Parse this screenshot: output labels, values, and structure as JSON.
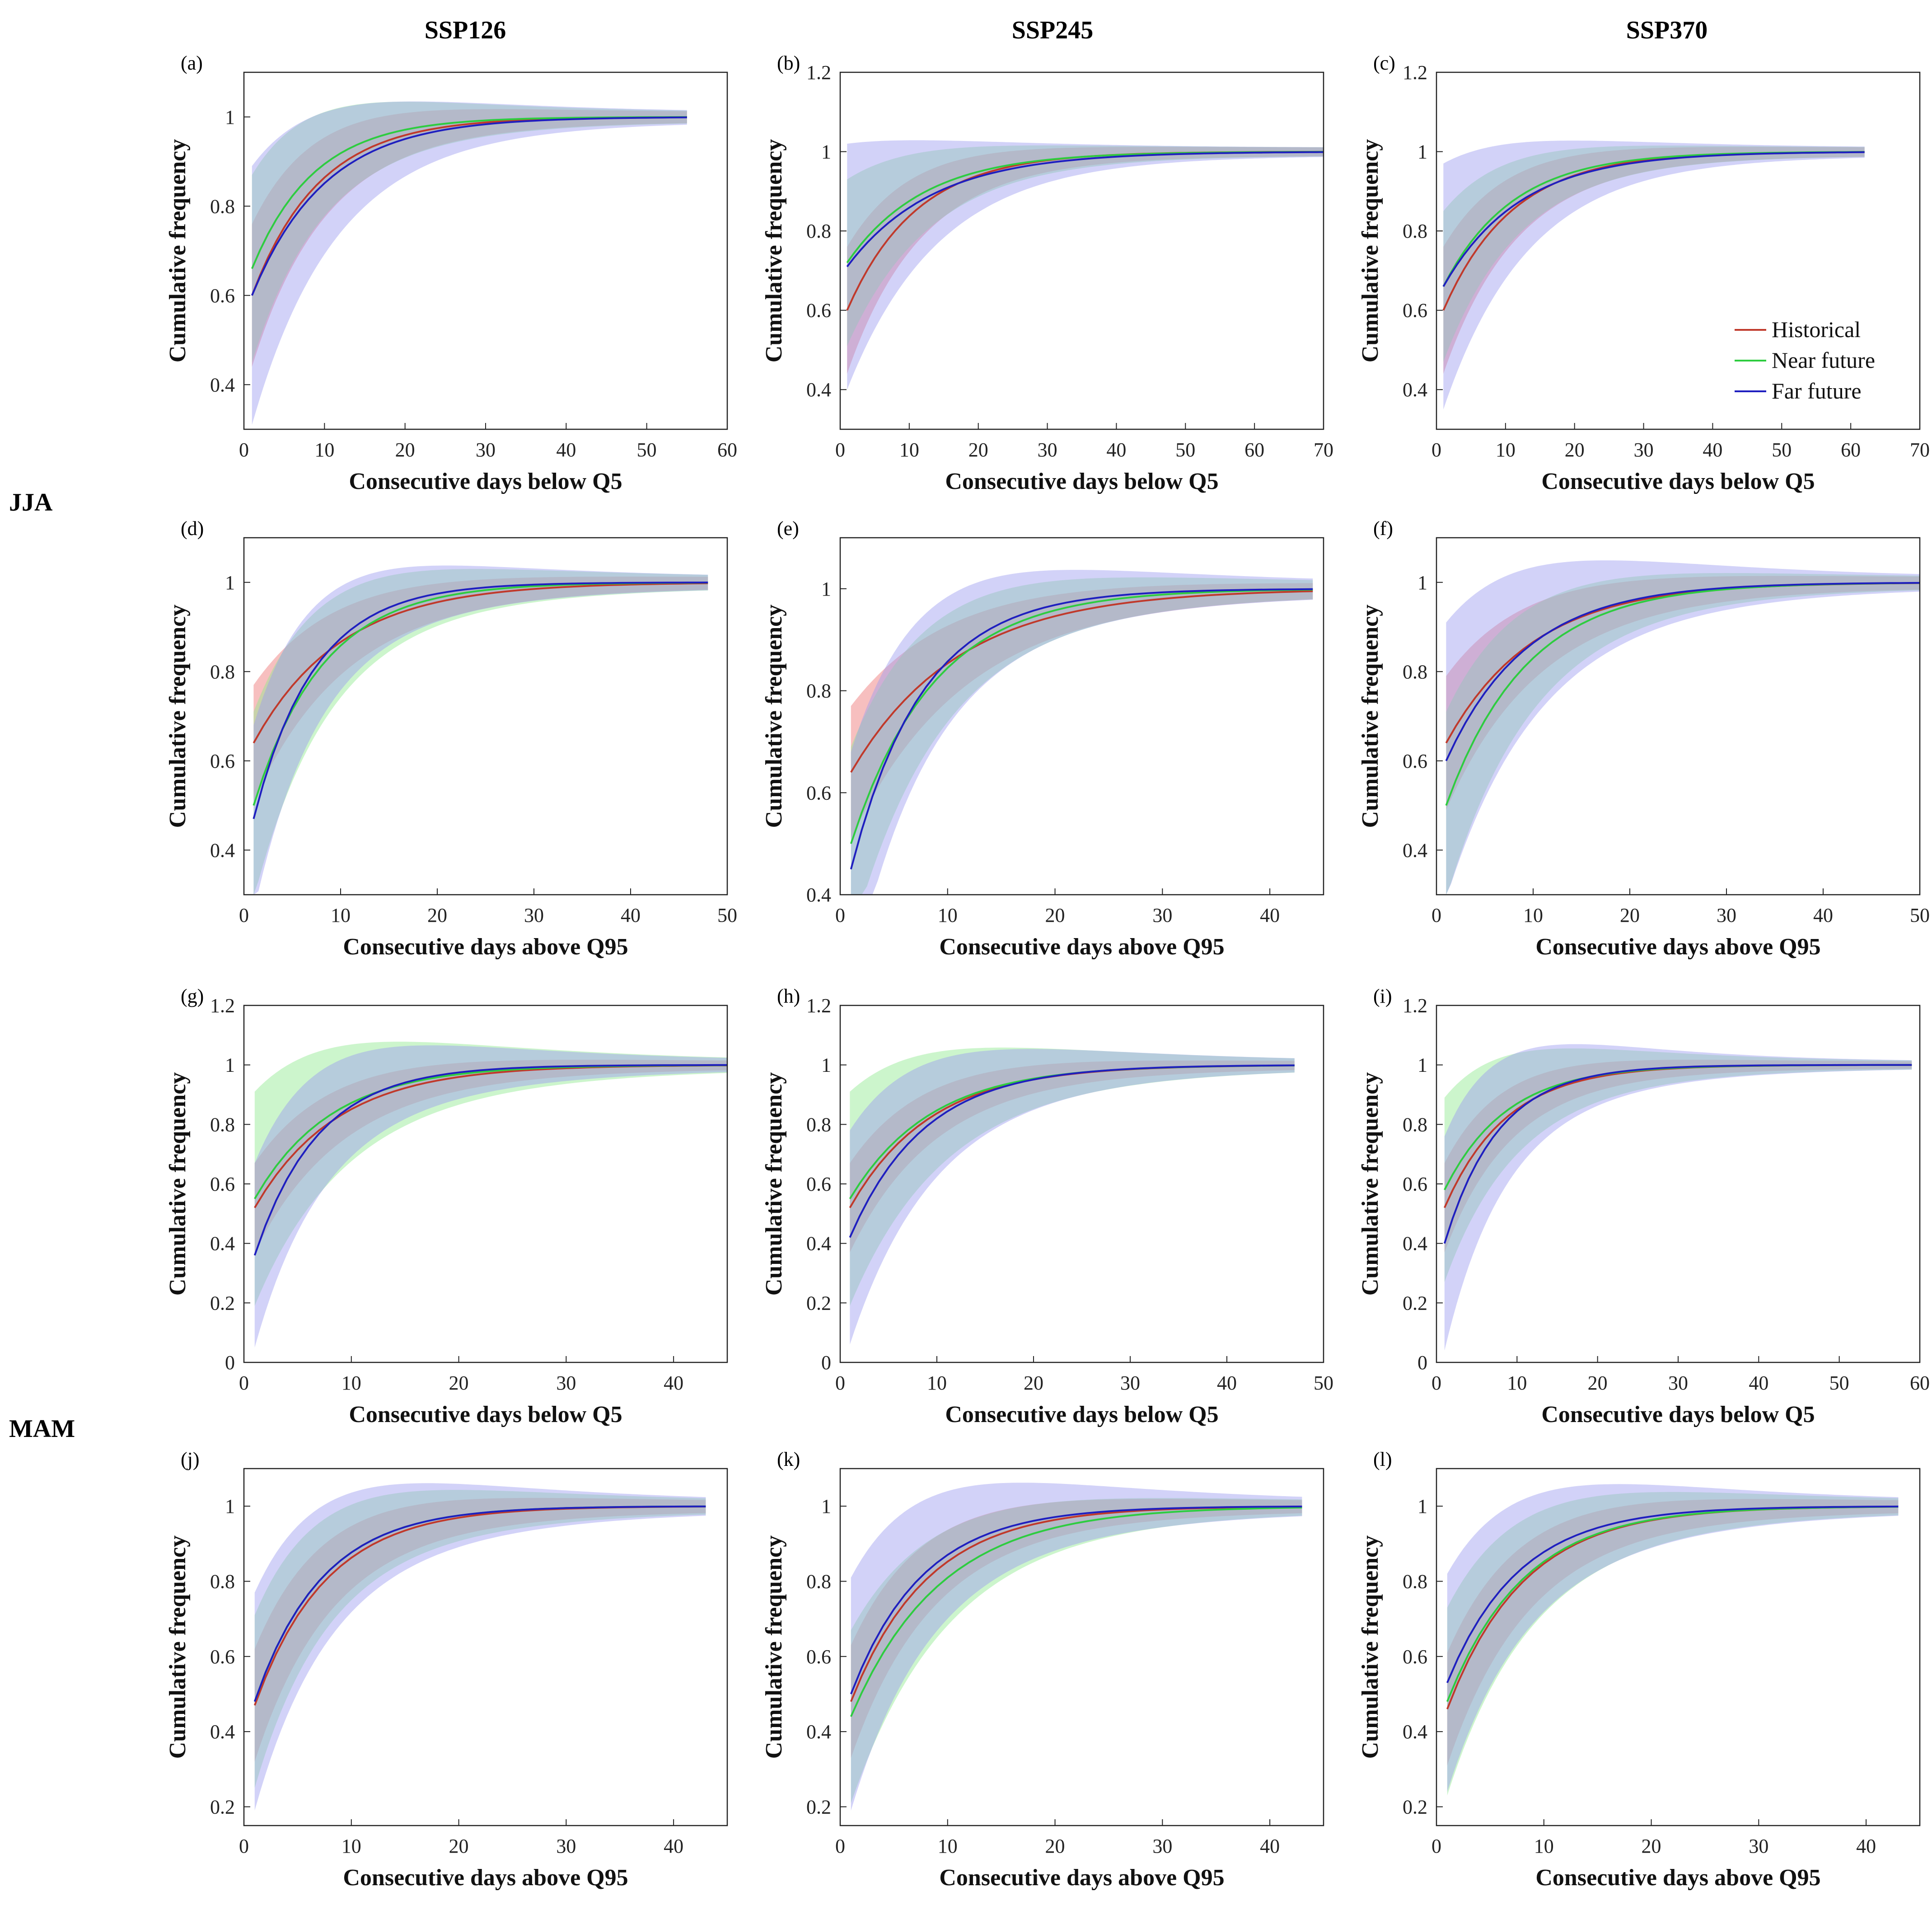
{
  "figure": {
    "column_titles": [
      "SSP126",
      "SSP245",
      "SSP370"
    ],
    "row_labels": [
      "JJA",
      "MAM"
    ],
    "legend": {
      "entries": [
        "Historical",
        "Near future",
        "Far future"
      ]
    },
    "colors": {
      "historical": "#c0392b",
      "near_future": "#2ecc40",
      "far_future": "#1f1fbf",
      "historical_band": "#f08a8a",
      "near_band": "#8ee88e",
      "far_band": "#9b9bf0"
    }
  },
  "chart_data": [
    {
      "panel": "(a)",
      "type": "area",
      "xlabel": "Consecutive days below Q5",
      "ylabel": "Cumulative frequency",
      "xlim": [
        0,
        60
      ],
      "ylim": [
        0.3,
        1.1
      ],
      "xticks": [
        0,
        10,
        20,
        30,
        40,
        50,
        60
      ],
      "yticks": [
        0.4,
        0.6,
        0.8,
        1
      ],
      "x_end": 55,
      "series": [
        {
          "name": "Historical",
          "start": 0.6,
          "rate": 0.12,
          "band": 0.15
        },
        {
          "name": "Near future",
          "start": 0.66,
          "rate": 0.13,
          "band": 0.2
        },
        {
          "name": "Far future",
          "start": 0.6,
          "rate": 0.11,
          "band": 0.28
        }
      ]
    },
    {
      "panel": "(b)",
      "type": "area",
      "xlabel": "Consecutive days below Q5",
      "ylabel": "Cumulative frequency",
      "xlim": [
        0,
        70
      ],
      "ylim": [
        0.3,
        1.2
      ],
      "xticks": [
        0,
        10,
        20,
        30,
        40,
        50,
        60,
        70
      ],
      "yticks": [
        0.4,
        0.6,
        0.8,
        1,
        1.2
      ],
      "x_end": 70,
      "series": [
        {
          "name": "Historical",
          "start": 0.6,
          "rate": 0.1,
          "band": 0.15
        },
        {
          "name": "Near future",
          "start": 0.72,
          "rate": 0.09,
          "band": 0.2
        },
        {
          "name": "Far future",
          "start": 0.71,
          "rate": 0.08,
          "band": 0.3
        }
      ]
    },
    {
      "panel": "(c)",
      "type": "area",
      "xlabel": "Consecutive days below Q5",
      "ylabel": "Cumulative frequency",
      "xlim": [
        0,
        70
      ],
      "ylim": [
        0.3,
        1.2
      ],
      "xticks": [
        0,
        10,
        20,
        30,
        40,
        50,
        60,
        70
      ],
      "yticks": [
        0.4,
        0.6,
        0.8,
        1,
        1.2
      ],
      "x_end": 62,
      "series": [
        {
          "name": "Historical",
          "start": 0.6,
          "rate": 0.1,
          "band": 0.15
        },
        {
          "name": "Near future",
          "start": 0.66,
          "rate": 0.1,
          "band": 0.18
        },
        {
          "name": "Far future",
          "start": 0.66,
          "rate": 0.09,
          "band": 0.3
        }
      ]
    },
    {
      "panel": "(d)",
      "type": "area",
      "xlabel": "Consecutive days above Q95",
      "ylabel": "Cumulative frequency",
      "xlim": [
        0,
        50
      ],
      "ylim": [
        0.3,
        1.1
      ],
      "xticks": [
        0,
        10,
        20,
        30,
        40,
        50
      ],
      "yticks": [
        0.4,
        0.6,
        0.8,
        1
      ],
      "x_end": 48,
      "series": [
        {
          "name": "Historical",
          "start": 0.64,
          "rate": 0.11,
          "band": 0.12
        },
        {
          "name": "Near future",
          "start": 0.5,
          "rate": 0.14,
          "band": 0.2
        },
        {
          "name": "Far future",
          "start": 0.47,
          "rate": 0.16,
          "band": 0.2
        }
      ]
    },
    {
      "panel": "(e)",
      "type": "area",
      "xlabel": "Consecutive days above Q95",
      "ylabel": "Cumulative frequency",
      "xlim": [
        0,
        45
      ],
      "ylim": [
        0.4,
        1.1
      ],
      "xticks": [
        0,
        10,
        20,
        30,
        40
      ],
      "yticks": [
        0.4,
        0.6,
        0.8,
        1
      ],
      "x_end": 44,
      "series": [
        {
          "name": "Historical",
          "start": 0.64,
          "rate": 0.1,
          "band": 0.12
        },
        {
          "name": "Near future",
          "start": 0.5,
          "rate": 0.13,
          "band": 0.18
        },
        {
          "name": "Far future",
          "start": 0.45,
          "rate": 0.15,
          "band": 0.22
        }
      ]
    },
    {
      "panel": "(f)",
      "type": "area",
      "xlabel": "Consecutive days above Q95",
      "ylabel": "Cumulative frequency",
      "xlim": [
        0,
        50
      ],
      "ylim": [
        0.3,
        1.1
      ],
      "xticks": [
        0,
        10,
        20,
        30,
        40,
        50
      ],
      "yticks": [
        0.4,
        0.6,
        0.8,
        1
      ],
      "x_end": 50,
      "series": [
        {
          "name": "Historical",
          "start": 0.64,
          "rate": 0.11,
          "band": 0.14
        },
        {
          "name": "Near future",
          "start": 0.5,
          "rate": 0.12,
          "band": 0.2
        },
        {
          "name": "Far future",
          "start": 0.6,
          "rate": 0.12,
          "band": 0.3
        }
      ]
    },
    {
      "panel": "(g)",
      "type": "area",
      "xlabel": "Consecutive days below Q5",
      "ylabel": "Cumulative frequency",
      "xlim": [
        0,
        45
      ],
      "ylim": [
        0,
        1.2
      ],
      "xticks": [
        0,
        10,
        20,
        30,
        40
      ],
      "yticks": [
        0,
        0.2,
        0.4,
        0.6,
        0.8,
        1,
        1.2
      ],
      "x_end": 45,
      "series": [
        {
          "name": "Historical",
          "start": 0.52,
          "rate": 0.13,
          "band": 0.14
        },
        {
          "name": "Near future",
          "start": 0.55,
          "rate": 0.14,
          "band": 0.35
        },
        {
          "name": "Far future",
          "start": 0.36,
          "rate": 0.17,
          "band": 0.3
        }
      ]
    },
    {
      "panel": "(h)",
      "type": "area",
      "xlabel": "Consecutive days below Q5",
      "ylabel": "Cumulative frequency",
      "xlim": [
        0,
        50
      ],
      "ylim": [
        0,
        1.2
      ],
      "xticks": [
        0,
        10,
        20,
        30,
        40,
        50
      ],
      "yticks": [
        0,
        0.2,
        0.4,
        0.6,
        0.8,
        1,
        1.2
      ],
      "x_end": 47,
      "series": [
        {
          "name": "Historical",
          "start": 0.52,
          "rate": 0.12,
          "band": 0.14
        },
        {
          "name": "Near future",
          "start": 0.55,
          "rate": 0.12,
          "band": 0.35
        },
        {
          "name": "Far future",
          "start": 0.42,
          "rate": 0.13,
          "band": 0.35
        }
      ]
    },
    {
      "panel": "(i)",
      "type": "area",
      "xlabel": "Consecutive days below Q5",
      "ylabel": "Cumulative frequency",
      "xlim": [
        0,
        60
      ],
      "ylim": [
        0,
        1.2
      ],
      "xticks": [
        0,
        10,
        20,
        30,
        40,
        50,
        60
      ],
      "yticks": [
        0,
        0.2,
        0.4,
        0.6,
        0.8,
        1,
        1.2
      ],
      "x_end": 59,
      "series": [
        {
          "name": "Historical",
          "start": 0.52,
          "rate": 0.13,
          "band": 0.14
        },
        {
          "name": "Near future",
          "start": 0.58,
          "rate": 0.13,
          "band": 0.3
        },
        {
          "name": "Far future",
          "start": 0.4,
          "rate": 0.15,
          "band": 0.35
        }
      ]
    },
    {
      "panel": "(j)",
      "type": "area",
      "xlabel": "Consecutive days above Q95",
      "ylabel": "Cumulative frequency",
      "xlim": [
        0,
        45
      ],
      "ylim": [
        0.15,
        1.1
      ],
      "xticks": [
        0,
        10,
        20,
        30,
        40
      ],
      "yticks": [
        0.2,
        0.4,
        0.6,
        0.8,
        1
      ],
      "x_end": 43,
      "series": [
        {
          "name": "Historical",
          "start": 0.47,
          "rate": 0.15,
          "band": 0.14
        },
        {
          "name": "Near future",
          "start": 0.48,
          "rate": 0.16,
          "band": 0.22
        },
        {
          "name": "Far future",
          "start": 0.48,
          "rate": 0.16,
          "band": 0.28
        }
      ]
    },
    {
      "panel": "(k)",
      "type": "area",
      "xlabel": "Consecutive days above Q95",
      "ylabel": "Cumulative frequency",
      "xlim": [
        0,
        45
      ],
      "ylim": [
        0.15,
        1.1
      ],
      "xticks": [
        0,
        10,
        20,
        30,
        40
      ],
      "yticks": [
        0.2,
        0.4,
        0.6,
        0.8,
        1
      ],
      "x_end": 43,
      "series": [
        {
          "name": "Historical",
          "start": 0.48,
          "rate": 0.14,
          "band": 0.14
        },
        {
          "name": "Near future",
          "start": 0.44,
          "rate": 0.12,
          "band": 0.22
        },
        {
          "name": "Far future",
          "start": 0.5,
          "rate": 0.15,
          "band": 0.3
        }
      ]
    },
    {
      "panel": "(l)",
      "type": "area",
      "xlabel": "Consecutive days above Q95",
      "ylabel": "Cumulative frequency",
      "xlim": [
        0,
        45
      ],
      "ylim": [
        0.15,
        1.1
      ],
      "xticks": [
        0,
        10,
        20,
        30,
        40
      ],
      "yticks": [
        0.2,
        0.4,
        0.6,
        0.8,
        1
      ],
      "x_end": 43,
      "series": [
        {
          "name": "Historical",
          "start": 0.46,
          "rate": 0.14,
          "band": 0.14
        },
        {
          "name": "Near future",
          "start": 0.48,
          "rate": 0.14,
          "band": 0.24
        },
        {
          "name": "Far future",
          "start": 0.53,
          "rate": 0.15,
          "band": 0.28
        }
      ]
    }
  ]
}
